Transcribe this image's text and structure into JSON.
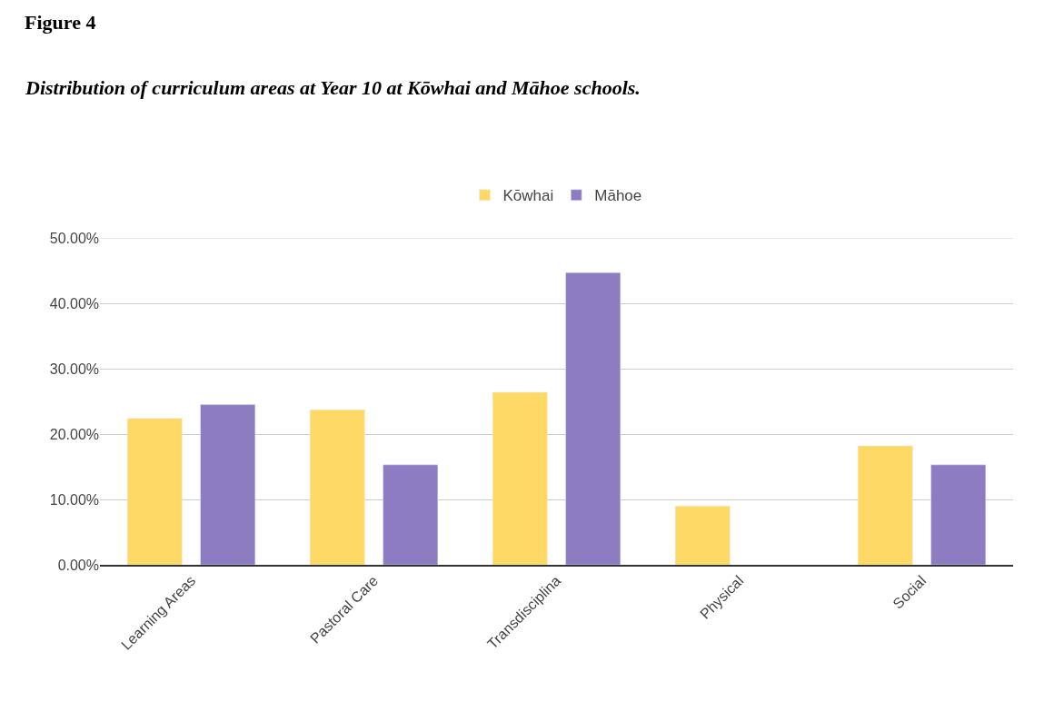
{
  "chart_data": {
    "type": "bar",
    "title": "Figure 4",
    "subtitle": "Distribution of curriculum areas at Year 10 at Kōwhai and Māhoe schools.",
    "categories": [
      "Learning Areas",
      "Pastoral Care",
      "Transdisciplina",
      "Physical",
      "Social"
    ],
    "series": [
      {
        "name": "Kōwhai",
        "color": "#ffd966",
        "values": [
          22.4,
          23.7,
          26.4,
          9.0,
          18.2
        ]
      },
      {
        "name": "Māhoe",
        "color": "#8e7cc3",
        "values": [
          24.5,
          15.3,
          44.7,
          null,
          15.3
        ]
      }
    ],
    "ylim": [
      0,
      50
    ],
    "yticks": [
      {
        "value": 0,
        "label": "0.00%"
      },
      {
        "value": 10,
        "label": "10.00%"
      },
      {
        "value": 20,
        "label": "20.00%"
      },
      {
        "value": 30,
        "label": "30.00%"
      },
      {
        "value": 40,
        "label": "40.00%"
      },
      {
        "value": 50,
        "label": "50.00%"
      }
    ],
    "grid": "y",
    "legend": "top"
  }
}
